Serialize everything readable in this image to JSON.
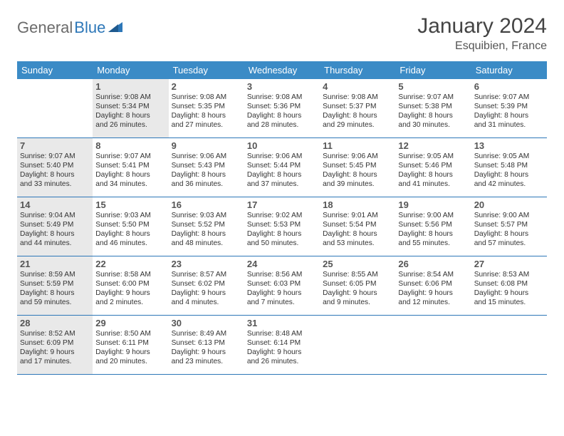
{
  "logo": {
    "part1": "General",
    "part2": "Blue"
  },
  "title": "January 2024",
  "location": "Esquibien, France",
  "colors": {
    "header_bg": "#3b8bc6",
    "border": "#2d77b8",
    "shaded_bg": "#e9e9e9",
    "page_bg": "#ffffff",
    "logo_gray": "#6b6b6b",
    "logo_blue": "#2d77b8"
  },
  "weekdays": [
    "Sunday",
    "Monday",
    "Tuesday",
    "Wednesday",
    "Thursday",
    "Friday",
    "Saturday"
  ],
  "weeks": [
    [
      {
        "num": "",
        "shaded": false,
        "lines": []
      },
      {
        "num": "1",
        "shaded": true,
        "lines": [
          "Sunrise: 9:08 AM",
          "Sunset: 5:34 PM",
          "Daylight: 8 hours",
          "and 26 minutes."
        ]
      },
      {
        "num": "2",
        "shaded": false,
        "lines": [
          "Sunrise: 9:08 AM",
          "Sunset: 5:35 PM",
          "Daylight: 8 hours",
          "and 27 minutes."
        ]
      },
      {
        "num": "3",
        "shaded": false,
        "lines": [
          "Sunrise: 9:08 AM",
          "Sunset: 5:36 PM",
          "Daylight: 8 hours",
          "and 28 minutes."
        ]
      },
      {
        "num": "4",
        "shaded": false,
        "lines": [
          "Sunrise: 9:08 AM",
          "Sunset: 5:37 PM",
          "Daylight: 8 hours",
          "and 29 minutes."
        ]
      },
      {
        "num": "5",
        "shaded": false,
        "lines": [
          "Sunrise: 9:07 AM",
          "Sunset: 5:38 PM",
          "Daylight: 8 hours",
          "and 30 minutes."
        ]
      },
      {
        "num": "6",
        "shaded": false,
        "lines": [
          "Sunrise: 9:07 AM",
          "Sunset: 5:39 PM",
          "Daylight: 8 hours",
          "and 31 minutes."
        ]
      }
    ],
    [
      {
        "num": "7",
        "shaded": true,
        "lines": [
          "Sunrise: 9:07 AM",
          "Sunset: 5:40 PM",
          "Daylight: 8 hours",
          "and 33 minutes."
        ]
      },
      {
        "num": "8",
        "shaded": false,
        "lines": [
          "Sunrise: 9:07 AM",
          "Sunset: 5:41 PM",
          "Daylight: 8 hours",
          "and 34 minutes."
        ]
      },
      {
        "num": "9",
        "shaded": false,
        "lines": [
          "Sunrise: 9:06 AM",
          "Sunset: 5:43 PM",
          "Daylight: 8 hours",
          "and 36 minutes."
        ]
      },
      {
        "num": "10",
        "shaded": false,
        "lines": [
          "Sunrise: 9:06 AM",
          "Sunset: 5:44 PM",
          "Daylight: 8 hours",
          "and 37 minutes."
        ]
      },
      {
        "num": "11",
        "shaded": false,
        "lines": [
          "Sunrise: 9:06 AM",
          "Sunset: 5:45 PM",
          "Daylight: 8 hours",
          "and 39 minutes."
        ]
      },
      {
        "num": "12",
        "shaded": false,
        "lines": [
          "Sunrise: 9:05 AM",
          "Sunset: 5:46 PM",
          "Daylight: 8 hours",
          "and 41 minutes."
        ]
      },
      {
        "num": "13",
        "shaded": false,
        "lines": [
          "Sunrise: 9:05 AM",
          "Sunset: 5:48 PM",
          "Daylight: 8 hours",
          "and 42 minutes."
        ]
      }
    ],
    [
      {
        "num": "14",
        "shaded": true,
        "lines": [
          "Sunrise: 9:04 AM",
          "Sunset: 5:49 PM",
          "Daylight: 8 hours",
          "and 44 minutes."
        ]
      },
      {
        "num": "15",
        "shaded": false,
        "lines": [
          "Sunrise: 9:03 AM",
          "Sunset: 5:50 PM",
          "Daylight: 8 hours",
          "and 46 minutes."
        ]
      },
      {
        "num": "16",
        "shaded": false,
        "lines": [
          "Sunrise: 9:03 AM",
          "Sunset: 5:52 PM",
          "Daylight: 8 hours",
          "and 48 minutes."
        ]
      },
      {
        "num": "17",
        "shaded": false,
        "lines": [
          "Sunrise: 9:02 AM",
          "Sunset: 5:53 PM",
          "Daylight: 8 hours",
          "and 50 minutes."
        ]
      },
      {
        "num": "18",
        "shaded": false,
        "lines": [
          "Sunrise: 9:01 AM",
          "Sunset: 5:54 PM",
          "Daylight: 8 hours",
          "and 53 minutes."
        ]
      },
      {
        "num": "19",
        "shaded": false,
        "lines": [
          "Sunrise: 9:00 AM",
          "Sunset: 5:56 PM",
          "Daylight: 8 hours",
          "and 55 minutes."
        ]
      },
      {
        "num": "20",
        "shaded": false,
        "lines": [
          "Sunrise: 9:00 AM",
          "Sunset: 5:57 PM",
          "Daylight: 8 hours",
          "and 57 minutes."
        ]
      }
    ],
    [
      {
        "num": "21",
        "shaded": true,
        "lines": [
          "Sunrise: 8:59 AM",
          "Sunset: 5:59 PM",
          "Daylight: 8 hours",
          "and 59 minutes."
        ]
      },
      {
        "num": "22",
        "shaded": false,
        "lines": [
          "Sunrise: 8:58 AM",
          "Sunset: 6:00 PM",
          "Daylight: 9 hours",
          "and 2 minutes."
        ]
      },
      {
        "num": "23",
        "shaded": false,
        "lines": [
          "Sunrise: 8:57 AM",
          "Sunset: 6:02 PM",
          "Daylight: 9 hours",
          "and 4 minutes."
        ]
      },
      {
        "num": "24",
        "shaded": false,
        "lines": [
          "Sunrise: 8:56 AM",
          "Sunset: 6:03 PM",
          "Daylight: 9 hours",
          "and 7 minutes."
        ]
      },
      {
        "num": "25",
        "shaded": false,
        "lines": [
          "Sunrise: 8:55 AM",
          "Sunset: 6:05 PM",
          "Daylight: 9 hours",
          "and 9 minutes."
        ]
      },
      {
        "num": "26",
        "shaded": false,
        "lines": [
          "Sunrise: 8:54 AM",
          "Sunset: 6:06 PM",
          "Daylight: 9 hours",
          "and 12 minutes."
        ]
      },
      {
        "num": "27",
        "shaded": false,
        "lines": [
          "Sunrise: 8:53 AM",
          "Sunset: 6:08 PM",
          "Daylight: 9 hours",
          "and 15 minutes."
        ]
      }
    ],
    [
      {
        "num": "28",
        "shaded": true,
        "lines": [
          "Sunrise: 8:52 AM",
          "Sunset: 6:09 PM",
          "Daylight: 9 hours",
          "and 17 minutes."
        ]
      },
      {
        "num": "29",
        "shaded": false,
        "lines": [
          "Sunrise: 8:50 AM",
          "Sunset: 6:11 PM",
          "Daylight: 9 hours",
          "and 20 minutes."
        ]
      },
      {
        "num": "30",
        "shaded": false,
        "lines": [
          "Sunrise: 8:49 AM",
          "Sunset: 6:13 PM",
          "Daylight: 9 hours",
          "and 23 minutes."
        ]
      },
      {
        "num": "31",
        "shaded": false,
        "lines": [
          "Sunrise: 8:48 AM",
          "Sunset: 6:14 PM",
          "Daylight: 9 hours",
          "and 26 minutes."
        ]
      },
      {
        "num": "",
        "shaded": false,
        "lines": []
      },
      {
        "num": "",
        "shaded": false,
        "lines": []
      },
      {
        "num": "",
        "shaded": false,
        "lines": []
      }
    ]
  ]
}
